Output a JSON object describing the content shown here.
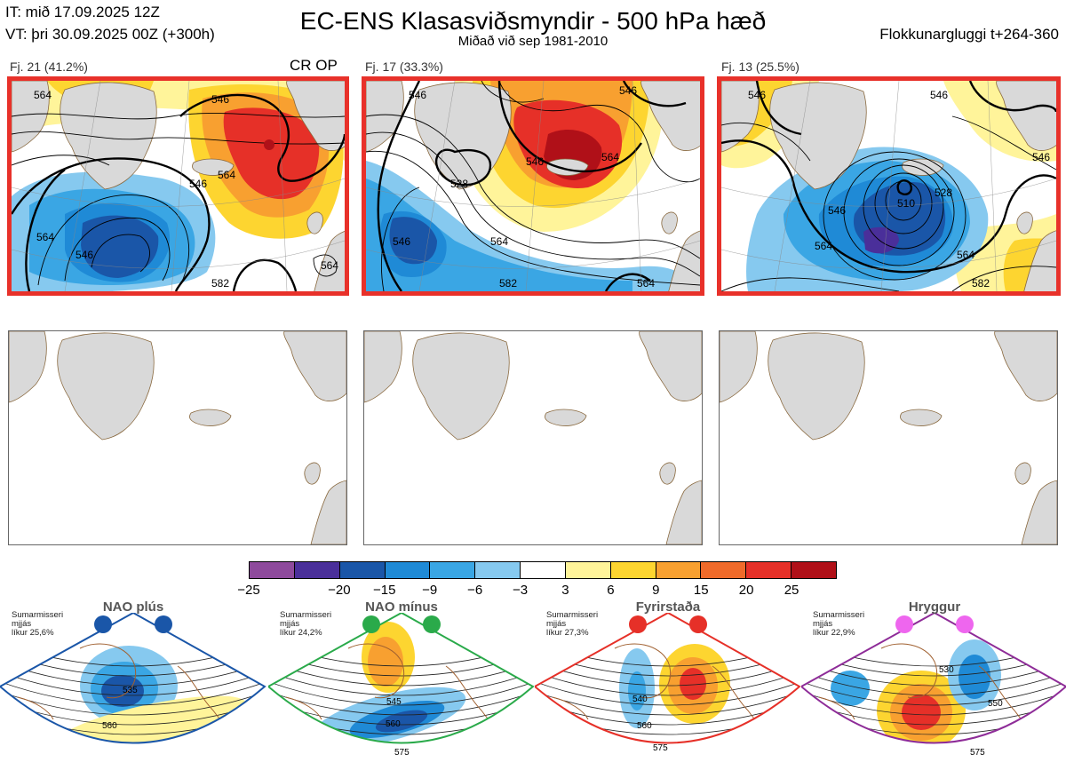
{
  "header": {
    "init_time": "IT: mið 17.09.2025 12Z",
    "valid_time": "VT: þri 30.09.2025 00Z  (+300h)",
    "title": "EC-ENS Klasasviðsmyndir - 500 hPa hæð",
    "subtitle": "Miðað við sep 1981-2010",
    "window": "Flokkunargluggi t+264-360"
  },
  "clusters": [
    {
      "label": "Fj. 21 (41.2%)",
      "tag": "CR OP",
      "contours": [
        "564",
        "546",
        "546",
        "564",
        "546",
        "564",
        "564",
        "582"
      ]
    },
    {
      "label": "Fj. 17 (33.3%)",
      "tag": "",
      "contours": [
        "546",
        "564",
        "546",
        "528",
        "546",
        "564",
        "582",
        "564",
        "546"
      ]
    },
    {
      "label": "Fj. 13 (25.5%)",
      "tag": "",
      "contours": [
        "546",
        "528",
        "546",
        "510",
        "546",
        "564",
        "564",
        "582",
        "546"
      ]
    }
  ],
  "colorbar": {
    "colors": [
      "#8e4a9c",
      "#4a2f9a",
      "#1a56a8",
      "#1f8ad6",
      "#3aa6e4",
      "#86c9ef",
      "#ffffff",
      "#fff49a",
      "#fdd530",
      "#f8a030",
      "#ef6a2a",
      "#e63028",
      "#b01018"
    ],
    "ticks": [
      "−25",
      "−20",
      "−15",
      "−9",
      "−6",
      "−3",
      "3",
      "6",
      "9",
      "15",
      "20",
      "25"
    ]
  },
  "regimes": [
    {
      "name": "NAO plús",
      "color": "#1a56a8",
      "season": "Sumarmisseri",
      "smooth": "mjjás",
      "prob": "líkur 25,6%",
      "contours": [
        "535",
        "560"
      ]
    },
    {
      "name": "NAO mínus",
      "color": "#2aaa4a",
      "season": "Sumarmisseri",
      "smooth": "mjjás",
      "prob": "líkur 24,2%",
      "contours": [
        "545",
        "560",
        "575"
      ]
    },
    {
      "name": "Fyrirstaða",
      "color": "#e63028",
      "season": "Sumarmisseri",
      "smooth": "mjjás",
      "prob": "líkur 27,3%",
      "contours": [
        "540",
        "560",
        "575"
      ]
    },
    {
      "name": "Hryggur",
      "color": "#8e2c98",
      "dot_color": "#ee66ee",
      "season": "Sumarmisseri",
      "smooth": "mjjás",
      "prob": "líkur 22,9%",
      "contours": [
        "530",
        "550",
        "575"
      ]
    }
  ]
}
